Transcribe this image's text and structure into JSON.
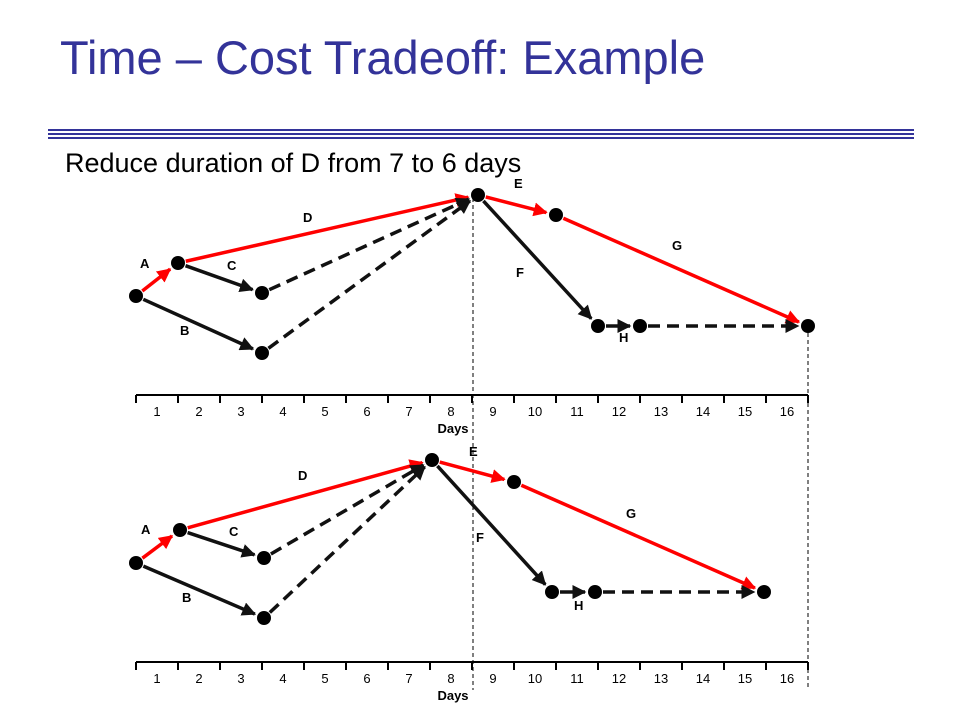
{
  "slide": {
    "title": "Time – Cost Tradeoff: Example",
    "subtitle": "Reduce duration of D from 7 to 6 days"
  },
  "colors": {
    "title": "#333399",
    "rule": "#333399",
    "critical": "#ff0000",
    "normal": "#111111",
    "node": "#000000"
  },
  "networks": [
    {
      "axis": {
        "ticks": [
          "1",
          "2",
          "3",
          "4",
          "5",
          "6",
          "7",
          "8",
          "9",
          "10",
          "11",
          "12",
          "13",
          "14",
          "15",
          "16"
        ],
        "label": "Days"
      },
      "activities": [
        {
          "label": "A",
          "critical": true,
          "dashed": false
        },
        {
          "label": "B",
          "critical": false,
          "dashed": false
        },
        {
          "label": "C",
          "critical": false,
          "dashed": false
        },
        {
          "label": "D",
          "critical": true,
          "dashed": false
        },
        {
          "label": "",
          "critical": false,
          "dashed": true
        },
        {
          "label": "",
          "critical": false,
          "dashed": true
        },
        {
          "label": "E",
          "critical": true,
          "dashed": false
        },
        {
          "label": "F",
          "critical": false,
          "dashed": false
        },
        {
          "label": "G",
          "critical": true,
          "dashed": false
        },
        {
          "label": "H",
          "critical": false,
          "dashed": false
        },
        {
          "label": "",
          "critical": false,
          "dashed": true
        }
      ]
    },
    {
      "axis": {
        "ticks": [
          "1",
          "2",
          "3",
          "4",
          "5",
          "6",
          "7",
          "8",
          "9",
          "10",
          "11",
          "12",
          "13",
          "14",
          "15",
          "16"
        ],
        "label": "Days"
      },
      "activities": [
        {
          "label": "A",
          "critical": true,
          "dashed": false
        },
        {
          "label": "B",
          "critical": false,
          "dashed": false
        },
        {
          "label": "C",
          "critical": false,
          "dashed": false
        },
        {
          "label": "D",
          "critical": true,
          "dashed": false
        },
        {
          "label": "",
          "critical": false,
          "dashed": true
        },
        {
          "label": "",
          "critical": false,
          "dashed": true
        },
        {
          "label": "E",
          "critical": true,
          "dashed": false
        },
        {
          "label": "F",
          "critical": false,
          "dashed": false
        },
        {
          "label": "G",
          "critical": true,
          "dashed": false
        },
        {
          "label": "H",
          "critical": false,
          "dashed": false
        },
        {
          "label": "",
          "critical": false,
          "dashed": true
        }
      ]
    }
  ]
}
